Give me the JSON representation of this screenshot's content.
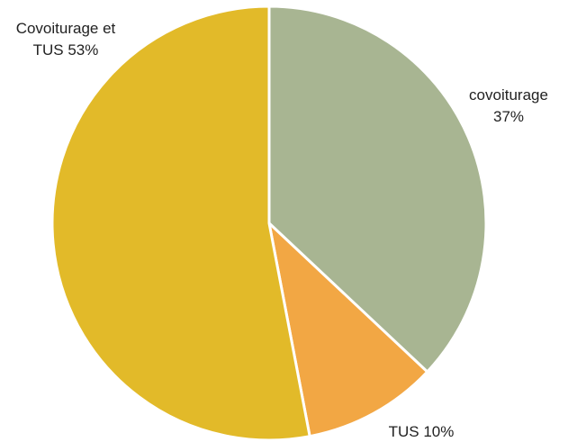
{
  "chart_data": {
    "type": "pie",
    "categories": [
      "covoiturage",
      "TUS",
      "Covoiturage et TUS"
    ],
    "values": [
      37,
      10,
      53
    ],
    "value_labels": [
      "37%",
      "10%",
      "53%"
    ],
    "colors": [
      "#a8b592",
      "#f2a744",
      "#e2ba29"
    ]
  }
}
